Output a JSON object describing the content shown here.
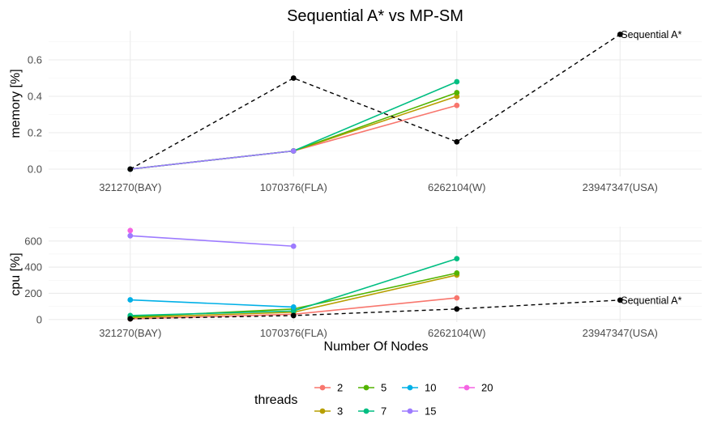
{
  "chart_data": {
    "title": "Sequential A* vs MP-SM",
    "xlabel": "Number Of Nodes",
    "categories": [
      "321270(BAY)",
      "1070376(FLA)",
      "6262104(W)",
      "23947347(USA)"
    ],
    "grid": true,
    "legend": {
      "title": "threads",
      "placement": "bottom",
      "entries": [
        "2",
        "3",
        "5",
        "7",
        "10",
        "15",
        "20"
      ]
    },
    "colors": {
      "2": "#F8766D",
      "3": "#B79F00",
      "5": "#53B400",
      "7": "#00BE82",
      "10": "#00B0E7",
      "15": "#9D7BFF",
      "20": "#F564E3",
      "sequential": "#000000"
    },
    "panels": [
      {
        "type": "line",
        "ylabel": "memory [%]",
        "ylim": [
          -0.04,
          0.76
        ],
        "yticks": [
          0.0,
          0.2,
          0.4,
          0.6
        ],
        "ytick_labels": [
          "0.0",
          "0.2",
          "0.4",
          "0.6"
        ],
        "series": [
          {
            "name": "2",
            "values": [
              0.0,
              0.1,
              0.35,
              null
            ]
          },
          {
            "name": "3",
            "values": [
              0.0,
              0.1,
              0.4,
              null
            ]
          },
          {
            "name": "5",
            "values": [
              0.0,
              0.1,
              0.42,
              null
            ]
          },
          {
            "name": "7",
            "values": [
              0.0,
              0.1,
              0.48,
              null
            ]
          },
          {
            "name": "15",
            "values": [
              0.0,
              0.1,
              null,
              null
            ]
          }
        ],
        "sequential": {
          "values": [
            0.0,
            0.5,
            0.15,
            0.74
          ],
          "label": "Sequential A*"
        }
      },
      {
        "type": "line",
        "ylabel": "cpu [%]",
        "ylim": [
          -20,
          710
        ],
        "yticks": [
          0,
          200,
          400,
          600
        ],
        "ytick_labels": [
          "0",
          "200",
          "400",
          "600"
        ],
        "series": [
          {
            "name": "2",
            "values": [
              5,
              40,
              165,
              null
            ]
          },
          {
            "name": "3",
            "values": [
              15,
              55,
              340,
              null
            ]
          },
          {
            "name": "5",
            "values": [
              20,
              80,
              355,
              null
            ]
          },
          {
            "name": "7",
            "values": [
              30,
              65,
              465,
              null
            ]
          },
          {
            "name": "10",
            "values": [
              150,
              95,
              null,
              null
            ]
          },
          {
            "name": "15",
            "values": [
              640,
              560,
              null,
              null
            ]
          },
          {
            "name": "20",
            "values": [
              680,
              null,
              null,
              null
            ]
          }
        ],
        "sequential": {
          "values": [
            5,
            30,
            80,
            148
          ],
          "label": "Sequential A*"
        }
      }
    ]
  }
}
